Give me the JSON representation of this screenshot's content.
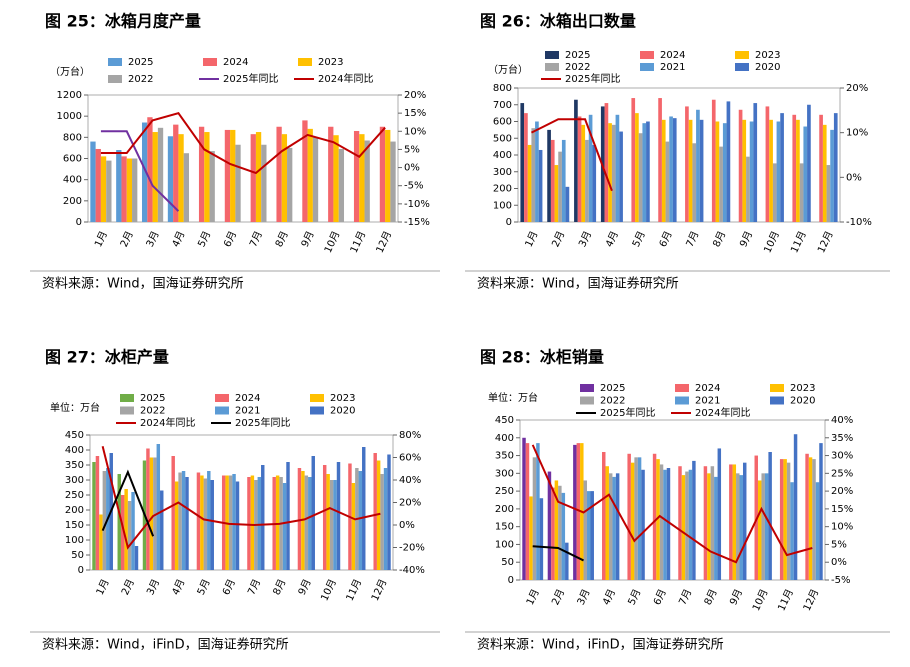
{
  "chart_data": [
    {
      "type": "bar_line",
      "title": "图 25：冰箱月度产量",
      "unit": "（万台）",
      "source": "资料来源：Wind，国海证券研究所",
      "categories": [
        "1月",
        "2月",
        "3月",
        "4月",
        "5月",
        "6月",
        "7月",
        "8月",
        "9月",
        "10月",
        "11月",
        "12月"
      ],
      "ylim": [
        0,
        1200
      ],
      "yticks": [
        0,
        200,
        400,
        600,
        800,
        1000,
        1200
      ],
      "y2lim": [
        -15,
        20
      ],
      "y2ticks": [
        {
          "value": -15,
          "label": "-15%"
        },
        {
          "value": -10,
          "label": "-10%"
        },
        {
          "value": -5,
          "label": "-5%"
        },
        {
          "value": 0,
          "label": "0%"
        },
        {
          "value": 5,
          "label": "5%"
        },
        {
          "value": 10,
          "label": "10%"
        },
        {
          "value": 15,
          "label": "15%"
        },
        {
          "value": 20,
          "label": "20%"
        }
      ],
      "series": [
        {
          "name": "2025",
          "type": "bar",
          "color": "#5b9bd5",
          "values": [
            760,
            680,
            940,
            810,
            null,
            null,
            null,
            null,
            null,
            null,
            null,
            null
          ]
        },
        {
          "name": "2024",
          "type": "bar",
          "color": "#f4666b",
          "values": [
            690,
            620,
            990,
            920,
            900,
            870,
            830,
            900,
            960,
            900,
            860,
            900
          ]
        },
        {
          "name": "2023",
          "type": "bar",
          "color": "#ffc000",
          "values": [
            620,
            600,
            850,
            830,
            850,
            870,
            850,
            830,
            880,
            820,
            830,
            870
          ]
        },
        {
          "name": "2022",
          "type": "bar",
          "color": "#a5a5a5",
          "values": [
            580,
            600,
            890,
            650,
            670,
            730,
            730,
            700,
            800,
            690,
            770,
            760
          ]
        },
        {
          "name": "2025年同比",
          "type": "line",
          "axis": "y2",
          "color": "#7030a0",
          "values": [
            10,
            10,
            -5,
            -12,
            null,
            null,
            null,
            null,
            null,
            null,
            null,
            null
          ]
        },
        {
          "name": "2024年同比",
          "type": "line",
          "axis": "y2",
          "color": "#c00000",
          "values": [
            4,
            4,
            13,
            15,
            5,
            1,
            -1.5,
            4.5,
            9,
            7,
            3,
            11
          ]
        }
      ]
    },
    {
      "type": "bar_line",
      "title": "图 26：冰箱出口数量",
      "unit": "（万台）",
      "source": "资料来源：Wind，国海证券研究所",
      "categories": [
        "1月",
        "2月",
        "3月",
        "4月",
        "5月",
        "6月",
        "7月",
        "8月",
        "9月",
        "10月",
        "11月",
        "12月"
      ],
      "ylim": [
        0,
        800
      ],
      "yticks": [
        0,
        100,
        200,
        300,
        400,
        500,
        600,
        700,
        800
      ],
      "y2lim": [
        -10,
        20
      ],
      "y2ticks": [
        {
          "value": -10,
          "label": "-10%"
        },
        {
          "value": 0,
          "label": "0%"
        },
        {
          "value": 10,
          "label": "10%"
        },
        {
          "value": 20,
          "label": "20%"
        }
      ],
      "series": [
        {
          "name": "2025",
          "type": "bar",
          "color": "#1f3864",
          "values": [
            710,
            550,
            730,
            690,
            null,
            null,
            null,
            null,
            null,
            null,
            null,
            null
          ]
        },
        {
          "name": "2024",
          "type": "bar",
          "color": "#f4666b",
          "values": [
            650,
            490,
            630,
            710,
            740,
            740,
            690,
            730,
            670,
            690,
            640,
            640
          ]
        },
        {
          "name": "2023",
          "type": "bar",
          "color": "#ffc000",
          "values": [
            460,
            340,
            580,
            590,
            650,
            610,
            610,
            600,
            610,
            610,
            610,
            580
          ]
        },
        {
          "name": "2022",
          "type": "bar",
          "color": "#a5a5a5",
          "values": [
            560,
            420,
            490,
            580,
            530,
            480,
            470,
            450,
            390,
            350,
            350,
            340
          ]
        },
        {
          "name": "2021",
          "type": "bar",
          "color": "#5b9bd5",
          "values": [
            600,
            490,
            640,
            640,
            590,
            630,
            670,
            590,
            600,
            600,
            570,
            550
          ]
        },
        {
          "name": "2020",
          "type": "bar",
          "color": "#4472c4",
          "values": [
            430,
            210,
            460,
            540,
            600,
            620,
            610,
            720,
            710,
            650,
            700,
            650
          ]
        },
        {
          "name": "2025年同比",
          "type": "line",
          "axis": "y2",
          "color": "#c00000",
          "values": [
            10,
            13,
            13,
            -3,
            null,
            null,
            null,
            null,
            null,
            null,
            null,
            null
          ]
        }
      ]
    },
    {
      "type": "bar_line",
      "title": "图 27：冰柜产量",
      "unit": "单位：万台",
      "source": "资料来源：Wind，iFinD，国海证券研究所",
      "categories": [
        "1月",
        "2月",
        "3月",
        "4月",
        "5月",
        "6月",
        "7月",
        "8月",
        "9月",
        "10月",
        "11月",
        "12月"
      ],
      "ylim": [
        0,
        450
      ],
      "yticks": [
        0,
        50,
        100,
        150,
        200,
        250,
        300,
        350,
        400,
        450
      ],
      "y2lim": [
        -40,
        80
      ],
      "y2ticks": [
        {
          "value": -40,
          "label": "-40%"
        },
        {
          "value": -20,
          "label": "-20%"
        },
        {
          "value": 0,
          "label": "0%"
        },
        {
          "value": 20,
          "label": "20%"
        },
        {
          "value": 40,
          "label": "40%"
        },
        {
          "value": 60,
          "label": "60%"
        },
        {
          "value": 80,
          "label": "80%"
        }
      ],
      "series": [
        {
          "name": "2025",
          "type": "bar",
          "color": "#70ad47",
          "values": [
            360,
            320,
            365,
            null,
            null,
            null,
            null,
            null,
            null,
            null,
            null,
            null
          ]
        },
        {
          "name": "2024",
          "type": "bar",
          "color": "#f4666b",
          "values": [
            380,
            250,
            405,
            380,
            325,
            315,
            310,
            310,
            340,
            350,
            355,
            390
          ]
        },
        {
          "name": "2023",
          "type": "bar",
          "color": "#ffc000",
          "values": [
            185,
            270,
            375,
            295,
            315,
            315,
            315,
            315,
            330,
            320,
            290,
            365
          ]
        },
        {
          "name": "2022",
          "type": "bar",
          "color": "#a5a5a5",
          "values": [
            330,
            230,
            375,
            325,
            305,
            315,
            300,
            310,
            315,
            300,
            340,
            320
          ]
        },
        {
          "name": "2021",
          "type": "bar",
          "color": "#5b9bd5",
          "values": [
            340,
            260,
            420,
            330,
            330,
            320,
            310,
            290,
            310,
            300,
            330,
            340
          ]
        },
        {
          "name": "2020",
          "type": "bar",
          "color": "#4472c4",
          "values": [
            390,
            80,
            265,
            310,
            300,
            295,
            350,
            360,
            380,
            360,
            410,
            385
          ]
        },
        {
          "name": "2024年同比",
          "type": "line",
          "axis": "y2",
          "color": "#c00000",
          "values": [
            70,
            -20,
            8,
            20,
            5,
            1,
            0,
            1,
            5,
            15,
            5,
            10
          ]
        },
        {
          "name": "2025年同比",
          "type": "line",
          "axis": "y2",
          "color": "#000000",
          "values": [
            -5,
            47,
            -10,
            null,
            null,
            null,
            null,
            null,
            null,
            null,
            null,
            null
          ]
        }
      ]
    },
    {
      "type": "bar_line",
      "title": "图 28：冰柜销量",
      "unit": "单位：万台",
      "source": "资料来源：Wind，iFinD，国海证券研究所",
      "categories": [
        "1月",
        "2月",
        "3月",
        "4月",
        "5月",
        "6月",
        "7月",
        "8月",
        "9月",
        "10月",
        "11月",
        "12月"
      ],
      "ylim": [
        0,
        450
      ],
      "yticks": [
        0,
        50,
        100,
        150,
        200,
        250,
        300,
        350,
        400,
        450
      ],
      "y2lim": [
        -5,
        40
      ],
      "y2ticks": [
        {
          "value": -5,
          "label": "-5%"
        },
        {
          "value": 0,
          "label": "0%"
        },
        {
          "value": 5,
          "label": "5%"
        },
        {
          "value": 10,
          "label": "10%"
        },
        {
          "value": 15,
          "label": "15%"
        },
        {
          "value": 20,
          "label": "20%"
        },
        {
          "value": 25,
          "label": "25%"
        },
        {
          "value": 30,
          "label": "30%"
        },
        {
          "value": 35,
          "label": "35%"
        },
        {
          "value": 40,
          "label": "40%"
        }
      ],
      "series": [
        {
          "name": "2025",
          "type": "bar",
          "color": "#7030a0",
          "values": [
            400,
            305,
            380,
            null,
            null,
            null,
            null,
            null,
            null,
            null,
            null,
            null
          ]
        },
        {
          "name": "2024",
          "type": "bar",
          "color": "#f4666b",
          "values": [
            385,
            260,
            385,
            360,
            355,
            355,
            320,
            320,
            325,
            350,
            340,
            355
          ]
        },
        {
          "name": "2023",
          "type": "bar",
          "color": "#ffc000",
          "values": [
            235,
            280,
            385,
            320,
            330,
            340,
            295,
            300,
            325,
            280,
            340,
            345
          ]
        },
        {
          "name": "2022",
          "type": "bar",
          "color": "#a5a5a5",
          "values": [
            345,
            265,
            280,
            300,
            345,
            325,
            305,
            320,
            300,
            300,
            330,
            340
          ]
        },
        {
          "name": "2021",
          "type": "bar",
          "color": "#5b9bd5",
          "values": [
            385,
            245,
            250,
            290,
            345,
            310,
            310,
            290,
            295,
            300,
            275,
            275
          ]
        },
        {
          "name": "2020",
          "type": "bar",
          "color": "#4472c4",
          "values": [
            230,
            105,
            250,
            300,
            310,
            315,
            335,
            370,
            330,
            360,
            410,
            385
          ]
        },
        {
          "name": "2025年同比",
          "type": "line",
          "axis": "y2",
          "color": "#000000",
          "values": [
            4.5,
            4,
            0.5,
            null,
            null,
            null,
            null,
            null,
            null,
            null,
            null,
            null
          ]
        },
        {
          "name": "2024年同比",
          "type": "line",
          "axis": "y2",
          "color": "#c00000",
          "values": [
            33,
            17,
            14,
            19,
            6,
            13,
            8,
            3,
            0,
            15,
            2,
            4
          ]
        }
      ]
    }
  ]
}
